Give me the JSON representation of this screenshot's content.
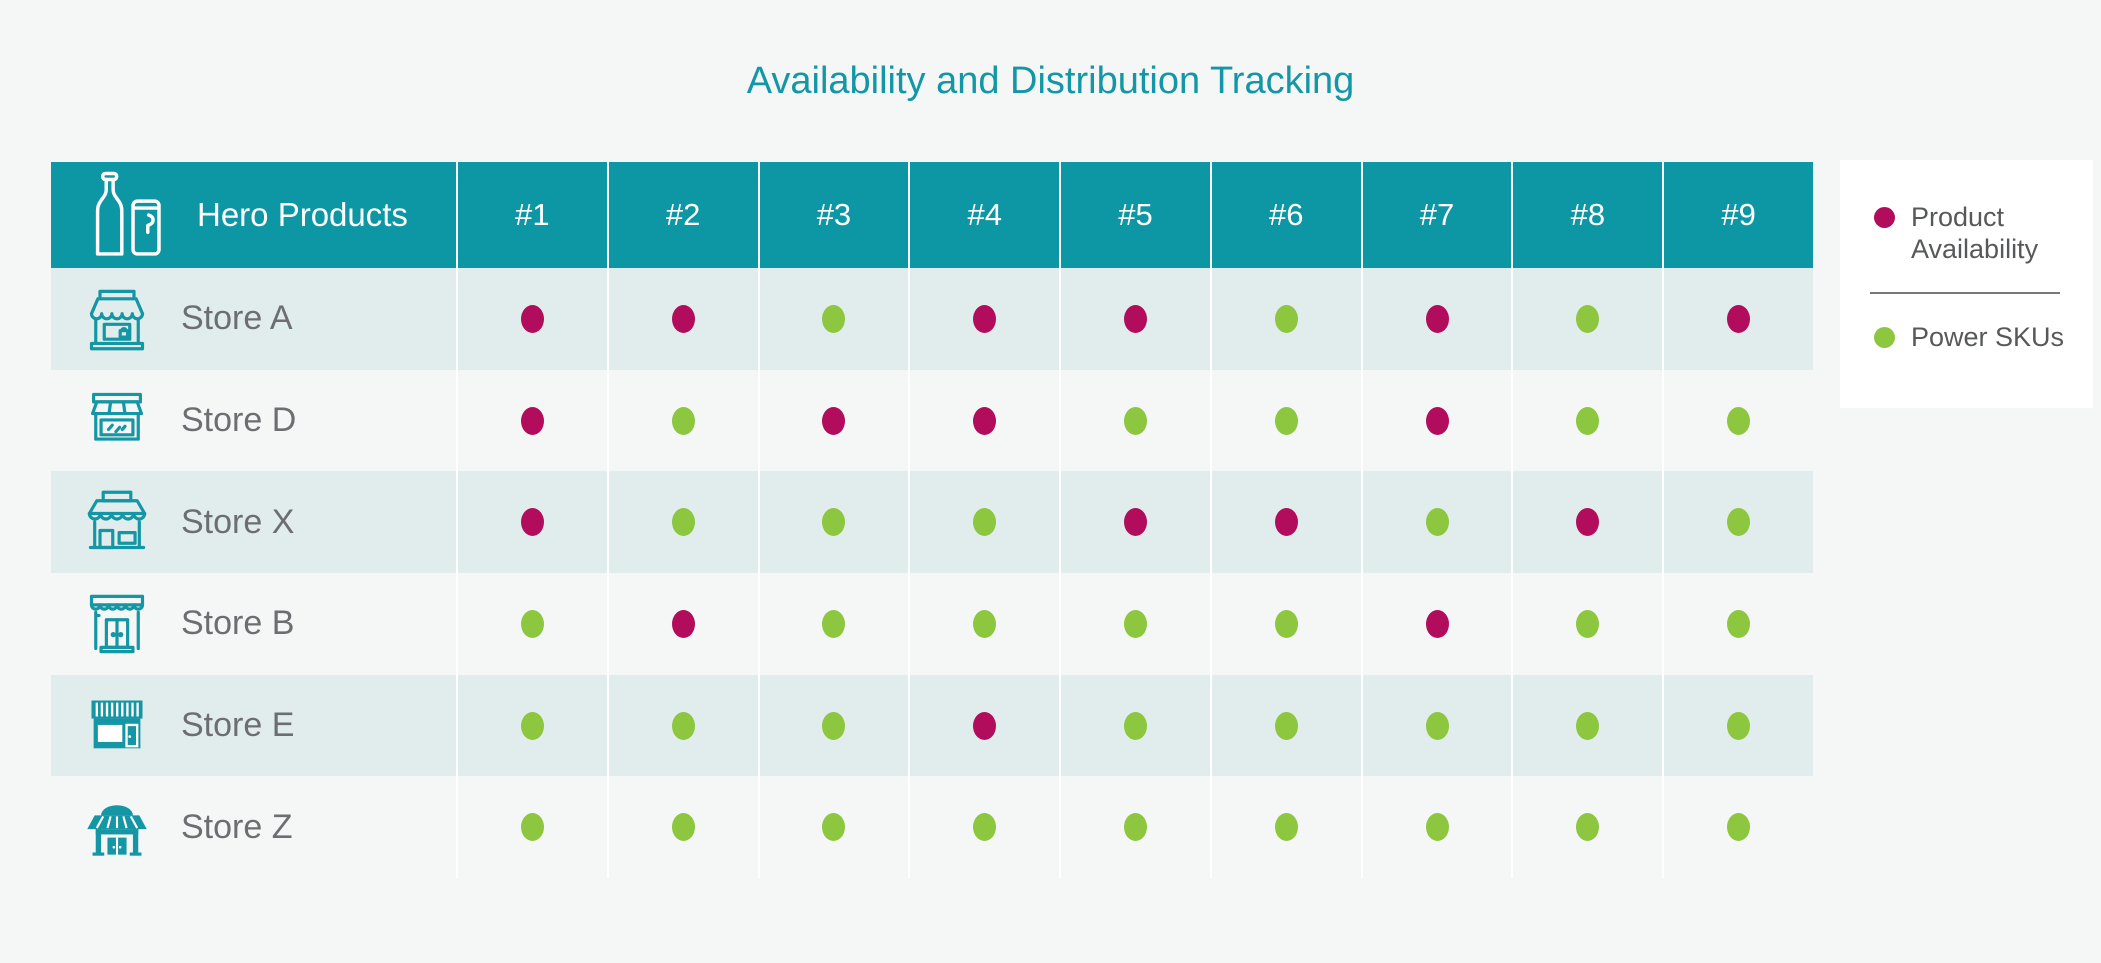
{
  "title": "Availability and Distribution Tracking",
  "colors": {
    "page_background": "#f5f6f6",
    "title_teal": "#1397a6",
    "header_teal": "#0d96a4",
    "row_stripe": "#e1edec",
    "product_availability_magenta": "#b10d5c",
    "power_sku_green": "#8dc63f",
    "store_label_gray": "#6d6e71",
    "legend_text_gray": "#57585a",
    "icon_teal": "#1596a4"
  },
  "table": {
    "corner_label": "Hero Products",
    "corner_icon": "bottle-can-icon",
    "row_icons": [
      "store-a-icon",
      "store-d-icon",
      "store-x-icon",
      "store-b-icon",
      "store-e-icon",
      "store-z-icon"
    ]
  },
  "legend": {
    "items": [
      {
        "label": "Product Availability",
        "color": "#b10d5c"
      },
      {
        "label": "Power SKUs",
        "color": "#8dc63f"
      }
    ]
  },
  "chart_data": {
    "type": "heatmap",
    "title": "Availability and Distribution Tracking",
    "x_labels": [
      "#1",
      "#2",
      "#3",
      "#4",
      "#5",
      "#6",
      "#7",
      "#8",
      "#9"
    ],
    "y_labels": [
      "Store A",
      "Store D",
      "Store X",
      "Store B",
      "Store E",
      "Store Z"
    ],
    "value_key": {
      "PA": "Product Availability",
      "PS": "Power SKUs"
    },
    "values": [
      [
        "PA",
        "PA",
        "PS",
        "PA",
        "PA",
        "PS",
        "PA",
        "PS",
        "PA"
      ],
      [
        "PA",
        "PS",
        "PA",
        "PA",
        "PS",
        "PS",
        "PA",
        "PS",
        "PS"
      ],
      [
        "PA",
        "PS",
        "PS",
        "PS",
        "PA",
        "PA",
        "PS",
        "PA",
        "PS"
      ],
      [
        "PS",
        "PA",
        "PS",
        "PS",
        "PS",
        "PS",
        "PA",
        "PS",
        "PS"
      ],
      [
        "PS",
        "PS",
        "PS",
        "PA",
        "PS",
        "PS",
        "PS",
        "PS",
        "PS"
      ],
      [
        "PS",
        "PS",
        "PS",
        "PS",
        "PS",
        "PS",
        "PS",
        "PS",
        "PS"
      ]
    ],
    "legend": [
      {
        "label": "Product Availability",
        "color": "#b10d5c"
      },
      {
        "label": "Power SKUs",
        "color": "#8dc63f"
      }
    ],
    "layout": {
      "legend_position": "right",
      "grid": "white-column-separators",
      "row_striping": true
    }
  }
}
